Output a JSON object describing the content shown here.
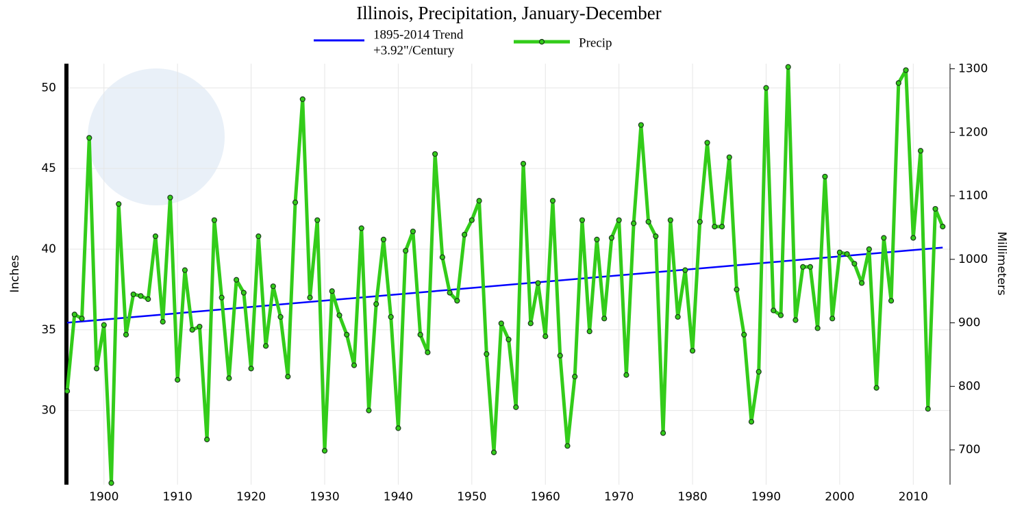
{
  "chart_data": {
    "type": "line",
    "title": "Illinois, Precipitation, January-December",
    "ylabel": "Inches",
    "y2label": "Millimeters",
    "xlim": [
      1894.9,
      2015
    ],
    "ylim": [
      25.4,
      51.5
    ],
    "y2lim": [
      645.16,
      1308.1
    ],
    "xticks": [
      1900,
      1910,
      1920,
      1930,
      1940,
      1950,
      1960,
      1970,
      1980,
      1990,
      2000,
      2010
    ],
    "yticks": [
      30,
      35,
      40,
      45,
      50
    ],
    "y2ticks": [
      700,
      800,
      900,
      1000,
      1100,
      1200,
      1300
    ],
    "grid": true,
    "series": [
      {
        "name": "1895-2014 Trend",
        "note": "+3.92\"/Century",
        "color": "#0000ff",
        "x": [
          1895,
          2014
        ],
        "values": [
          35.44,
          40.1
        ]
      },
      {
        "name": "Precip",
        "color": "#33cc1a",
        "marker": true,
        "x": [
          1895,
          1896,
          1897,
          1898,
          1899,
          1900,
          1901,
          1902,
          1903,
          1904,
          1905,
          1906,
          1907,
          1908,
          1909,
          1910,
          1911,
          1912,
          1913,
          1914,
          1915,
          1916,
          1917,
          1918,
          1919,
          1920,
          1921,
          1922,
          1923,
          1924,
          1925,
          1926,
          1927,
          1928,
          1929,
          1930,
          1931,
          1932,
          1933,
          1934,
          1935,
          1936,
          1937,
          1938,
          1939,
          1940,
          1941,
          1942,
          1943,
          1944,
          1945,
          1946,
          1947,
          1948,
          1949,
          1950,
          1951,
          1952,
          1953,
          1954,
          1955,
          1956,
          1957,
          1958,
          1959,
          1960,
          1961,
          1962,
          1963,
          1964,
          1965,
          1966,
          1967,
          1968,
          1969,
          1970,
          1971,
          1972,
          1973,
          1974,
          1975,
          1976,
          1977,
          1978,
          1979,
          1980,
          1981,
          1982,
          1983,
          1984,
          1985,
          1986,
          1987,
          1988,
          1989,
          1990,
          1991,
          1992,
          1993,
          1994,
          1995,
          1996,
          1997,
          1998,
          1999,
          2000,
          2001,
          2002,
          2003,
          2004,
          2005,
          2006,
          2007,
          2008,
          2009,
          2010,
          2011,
          2012,
          2013,
          2014
        ],
        "values": [
          31.2,
          35.95,
          35.7,
          46.9,
          32.6,
          35.3,
          25.5,
          42.8,
          34.7,
          37.2,
          37.1,
          36.9,
          40.8,
          35.5,
          43.2,
          31.9,
          38.7,
          35.0,
          35.2,
          28.2,
          41.8,
          37.0,
          32.0,
          38.1,
          37.3,
          32.6,
          40.8,
          34.0,
          37.7,
          35.8,
          32.1,
          42.9,
          49.3,
          37.0,
          41.8,
          27.5,
          37.4,
          35.9,
          34.7,
          32.8,
          41.3,
          30.0,
          36.6,
          40.6,
          35.8,
          28.9,
          39.9,
          41.1,
          34.7,
          33.6,
          45.9,
          39.5,
          37.3,
          36.8,
          40.9,
          41.8,
          43.0,
          33.5,
          27.4,
          35.4,
          34.4,
          30.2,
          45.3,
          35.4,
          37.9,
          34.6,
          43.0,
          33.4,
          27.8,
          32.1,
          41.8,
          34.9,
          40.6,
          35.7,
          40.7,
          41.8,
          32.2,
          41.6,
          47.7,
          41.7,
          40.8,
          28.6,
          41.8,
          35.8,
          38.7,
          33.7,
          41.7,
          46.6,
          41.4,
          41.4,
          45.7,
          37.5,
          34.7,
          29.3,
          32.4,
          50.0,
          36.2,
          35.9,
          51.3,
          35.6,
          38.9,
          38.9,
          35.1,
          44.5,
          35.7,
          39.8,
          39.7,
          39.1,
          37.9,
          40.0,
          31.4,
          40.7,
          36.8,
          50.3,
          51.1,
          40.7,
          46.1,
          30.1,
          42.5,
          41.4
        ]
      }
    ]
  }
}
